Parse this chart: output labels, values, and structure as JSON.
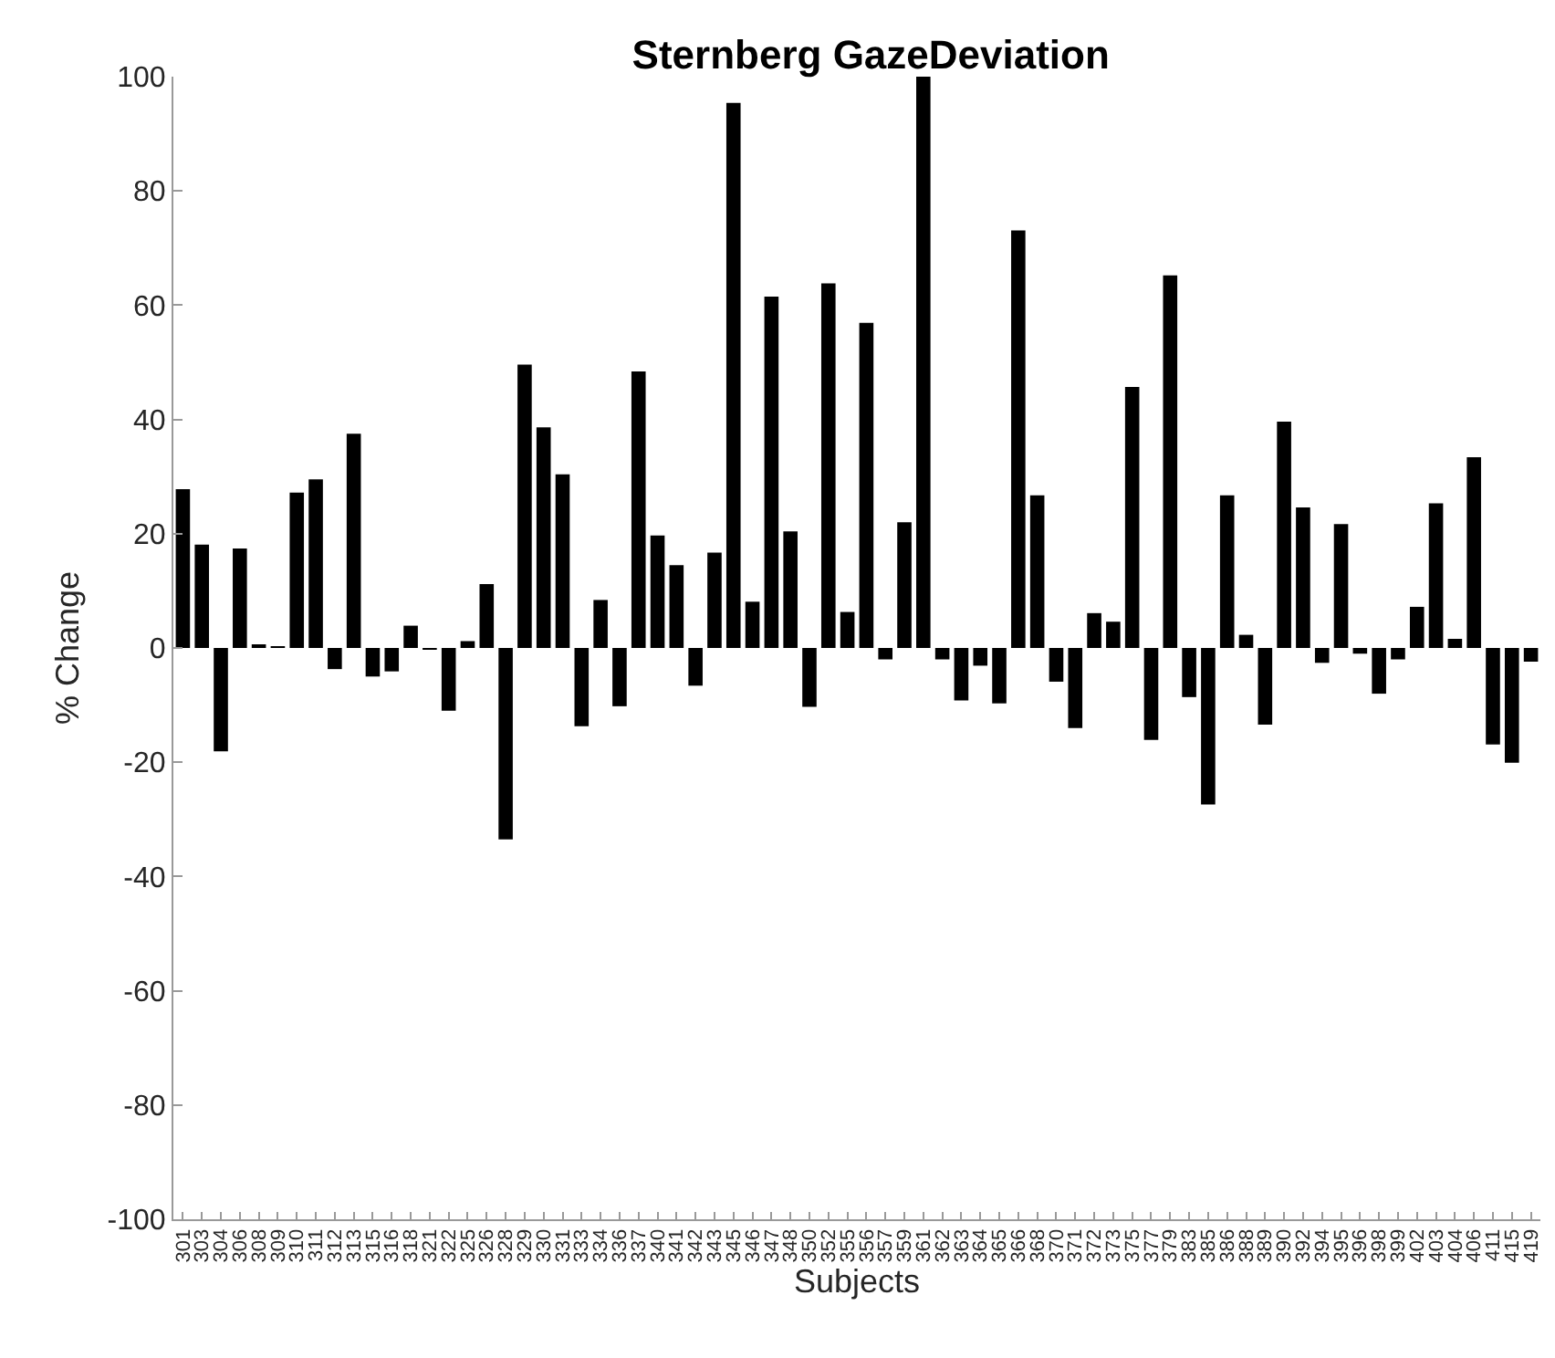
{
  "chart_data": {
    "type": "bar",
    "title": "Sternberg GazeDeviation",
    "xlabel": "Subjects",
    "ylabel": "% Change",
    "categories": [
      "301",
      "303",
      "304",
      "306",
      "308",
      "309",
      "310",
      "311",
      "312",
      "313",
      "315",
      "316",
      "318",
      "321",
      "322",
      "325",
      "326",
      "328",
      "329",
      "330",
      "331",
      "333",
      "334",
      "336",
      "337",
      "340",
      "341",
      "342",
      "343",
      "345",
      "346",
      "347",
      "348",
      "350",
      "352",
      "355",
      "356",
      "357",
      "359",
      "361",
      "362",
      "363",
      "364",
      "365",
      "366",
      "368",
      "370",
      "371",
      "372",
      "373",
      "375",
      "377",
      "379",
      "383",
      "385",
      "386",
      "388",
      "389",
      "390",
      "392",
      "394",
      "395",
      "396",
      "398",
      "399",
      "402",
      "403",
      "404",
      "406",
      "411",
      "415",
      "419"
    ],
    "values": [
      27.8,
      18.1,
      -18.1,
      17.4,
      0.5,
      0.2,
      27.2,
      29.5,
      -3.7,
      37.5,
      -5,
      -4.1,
      3.9,
      -0.3,
      -11,
      1.2,
      11.2,
      -33.5,
      49.6,
      38.6,
      30.4,
      -13.7,
      8.4,
      -10.2,
      48.4,
      19.7,
      14.5,
      -6.6,
      16.7,
      95.4,
      8.1,
      61.5,
      20.4,
      -10.3,
      63.8,
      6.3,
      56.9,
      -2,
      22,
      100,
      -2,
      -9.2,
      -3.1,
      -9.7,
      73.1,
      26.7,
      -5.9,
      -14,
      6.1,
      4.6,
      45.7,
      -16.1,
      65.2,
      -8.6,
      -27.4,
      26.7,
      2.3,
      -13.4,
      39.6,
      24.6,
      -2.6,
      21.7,
      -1,
      -8,
      -2,
      7.2,
      25.3,
      1.6,
      33.4,
      -16.9,
      -20.1,
      -2.4
    ],
    "color": "#000000",
    "ylim": [
      -100,
      100
    ],
    "yticks": [
      -100,
      -80,
      -60,
      -40,
      -20,
      0,
      20,
      40,
      60,
      80,
      100
    ]
  }
}
